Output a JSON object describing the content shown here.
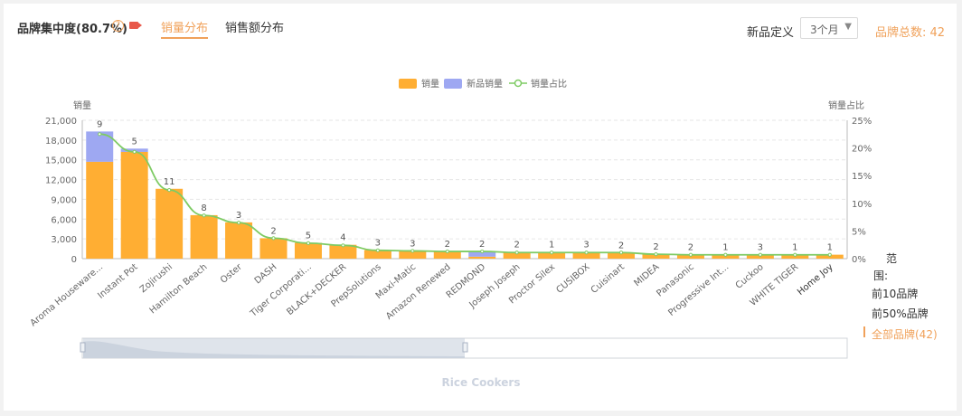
{
  "header": {
    "title": "品牌集中度(80.7%)",
    "tabs": [
      {
        "label": "销量分布",
        "active": true
      },
      {
        "label": "销售额分布",
        "active": false
      }
    ],
    "new_def_label": "新品定义",
    "new_def_value": "3个月",
    "brand_total": "品牌总数: 42"
  },
  "range": {
    "title": "范围:",
    "options": [
      "前10品牌",
      "前50%品牌",
      "全部品牌(42)"
    ],
    "selected": 2
  },
  "colors": {
    "sales": "#ffae33",
    "new_sales": "#9ea8f2",
    "share": "#7ecb64",
    "accent": "#f0a15a"
  },
  "chart_data": {
    "type": "bar",
    "title": "Rice Cookers",
    "ylabel_left": "销量",
    "ylabel_right": "销量占比",
    "y_ticks": [
      "0",
      "3,000",
      "6,000",
      "9,000",
      "12,000",
      "15,000",
      "18,000",
      "21,000"
    ],
    "y2_ticks": [
      "0%",
      "5%",
      "10%",
      "15%",
      "20%",
      "25%"
    ],
    "ylim": [
      0,
      21000
    ],
    "y2lim": [
      0,
      25
    ],
    "legend": [
      "销量",
      "新品销量",
      "销量占比"
    ],
    "categories": [
      "Aroma Houseware...",
      "Instant Pot",
      "Zojirushi",
      "Hamilton Beach",
      "Oster",
      "DASH",
      "Tiger Corporati...",
      "BLACK+DECKER",
      "PrepSolutions",
      "Maxi-Matic",
      "Amazon Renewed",
      "REDMOND",
      "Joseph Joseph",
      "Proctor Silex",
      "CUSIBOX",
      "Cuisinart",
      "MIDEA",
      "Panasonic",
      "Progressive Int...",
      "Cuckoo",
      "WHITE TIGER",
      "Home Joy"
    ],
    "series": [
      {
        "name": "销量",
        "values": [
          14700,
          16200,
          10600,
          6600,
          5500,
          3100,
          2400,
          2100,
          1300,
          1200,
          1100,
          300,
          1000,
          1000,
          1000,
          900,
          700,
          600,
          600,
          600,
          600,
          600
        ]
      },
      {
        "name": "新品销量",
        "values": [
          4600,
          500,
          0,
          0,
          0,
          0,
          0,
          0,
          0,
          0,
          0,
          800,
          0,
          0,
          0,
          0,
          0,
          0,
          0,
          0,
          0,
          0
        ]
      },
      {
        "name": "销量占比",
        "values": [
          22.5,
          19.3,
          12.4,
          7.8,
          6.5,
          3.7,
          2.8,
          2.4,
          1.5,
          1.4,
          1.3,
          1.3,
          1.1,
          1.1,
          1.1,
          1.1,
          0.8,
          0.7,
          0.7,
          0.7,
          0.7,
          0.7
        ]
      }
    ],
    "counts": [
      "9",
      "5",
      "11",
      "8",
      "3",
      "2",
      "5",
      "4",
      "3",
      "3",
      "2",
      "2",
      "2",
      "1",
      "3",
      "2",
      "2",
      "2",
      "1",
      "3",
      "1",
      "1"
    ]
  }
}
